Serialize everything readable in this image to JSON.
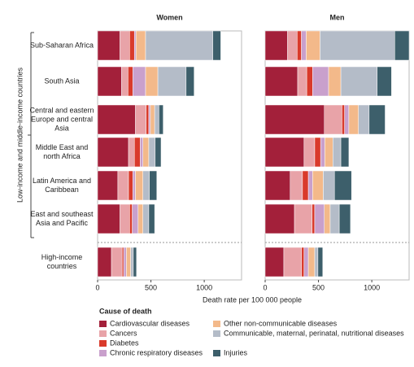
{
  "chart_data": {
    "type": "bar",
    "orientation": "horizontal",
    "stacked": true,
    "group_label": "Low-income and middle-income countries",
    "categories": [
      "Sub-Saharan Africa",
      "South Asia",
      "Central and eastern Europe and central Asia",
      "Middle East and north Africa",
      "Latin America and Caribbean",
      "East and southeast Asia and Pacific",
      "High-income countries"
    ],
    "xlabel": "Death rate per 100 000 people",
    "xlim": [
      0,
      1350
    ],
    "xticks": [
      0,
      500,
      1000
    ],
    "legend_title": "Cause of death",
    "series": [
      {
        "name": "Cardiovascular diseases",
        "color": "#a3203a"
      },
      {
        "name": "Cancers",
        "color": "#e8a3a8"
      },
      {
        "name": "Diabetes",
        "color": "#d93a2b"
      },
      {
        "name": "Chronic respiratory diseases",
        "color": "#c9a0cc"
      },
      {
        "name": "Other non-communicable diseases",
        "color": "#f3b98a"
      },
      {
        "name": "Communicable, maternal, perinatal, nutritional diseases",
        "color": "#b4bcc8"
      },
      {
        "name": "Injuries",
        "color": "#3d5f6b"
      }
    ],
    "panels": [
      {
        "title": "Women",
        "values": [
          [
            210,
            90,
            45,
            15,
            90,
            630,
            75
          ],
          [
            225,
            60,
            45,
            120,
            115,
            265,
            75
          ],
          [
            355,
            100,
            25,
            15,
            40,
            40,
            40
          ],
          [
            290,
            55,
            55,
            25,
            55,
            60,
            55
          ],
          [
            190,
            100,
            40,
            25,
            70,
            60,
            70
          ],
          [
            210,
            90,
            25,
            55,
            45,
            55,
            55
          ],
          [
            130,
            100,
            15,
            25,
            40,
            25,
            30
          ]
        ]
      },
      {
        "title": "Men",
        "values": [
          [
            210,
            90,
            40,
            45,
            130,
            700,
            135
          ],
          [
            305,
            85,
            55,
            150,
            115,
            340,
            135
          ],
          [
            555,
            165,
            25,
            40,
            90,
            100,
            150
          ],
          [
            365,
            100,
            55,
            40,
            75,
            75,
            75
          ],
          [
            235,
            115,
            55,
            40,
            100,
            105,
            160
          ],
          [
            275,
            165,
            25,
            90,
            55,
            85,
            105
          ],
          [
            175,
            165,
            25,
            40,
            60,
            30,
            45
          ]
        ]
      }
    ]
  }
}
